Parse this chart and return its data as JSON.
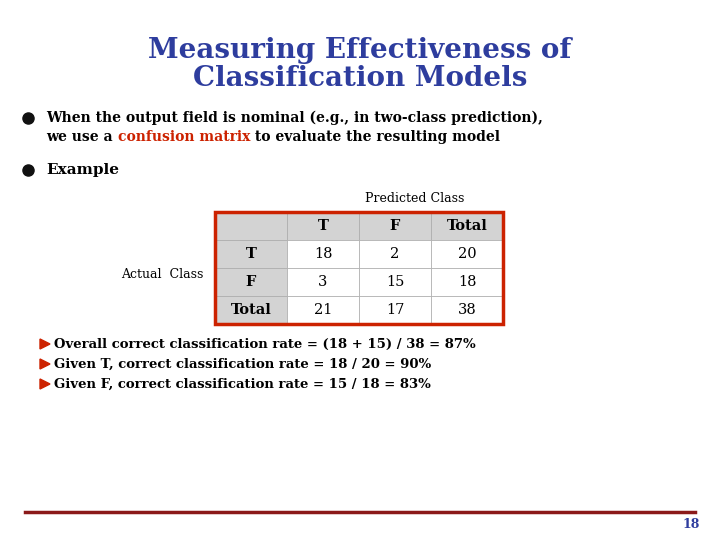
{
  "title_line1": "Measuring Effectiveness of",
  "title_line2": "Classification Models",
  "title_color": "#2E3D9E",
  "title_fontsize": 20,
  "bg_color": "#FFFFFF",
  "bullet1_text1": "When the output field is nominal (e.g., in two-class prediction),",
  "bullet1_text2_prefix": "we use a ",
  "bullet1_highlight": "confusion matrix",
  "bullet1_highlight_color": "#CC2200",
  "bullet1_text2_suffix": " to evaluate the resulting model",
  "bullet2_text": "Example",
  "table_header": [
    "",
    "T",
    "F",
    "Total"
  ],
  "table_rows": [
    [
      "T",
      "18",
      "2",
      "20"
    ],
    [
      "F",
      "3",
      "15",
      "18"
    ],
    [
      "Total",
      "21",
      "17",
      "38"
    ]
  ],
  "predicted_class_label": "Predicted Class",
  "actual_class_label": "Actual  Class",
  "table_border_color": "#CC2200",
  "bullet_points": [
    "Overall correct classification rate = (18 + 15) / 38 = 87%",
    "Given T, correct classification rate = 18 / 20 = 90%",
    "Given F, correct classification rate = 15 / 18 = 83%"
  ],
  "bullet_color": "#CC2200",
  "text_color": "#000000",
  "footer_line_color": "#8B1A1A",
  "page_number": "18",
  "page_number_color": "#2E3D9E"
}
